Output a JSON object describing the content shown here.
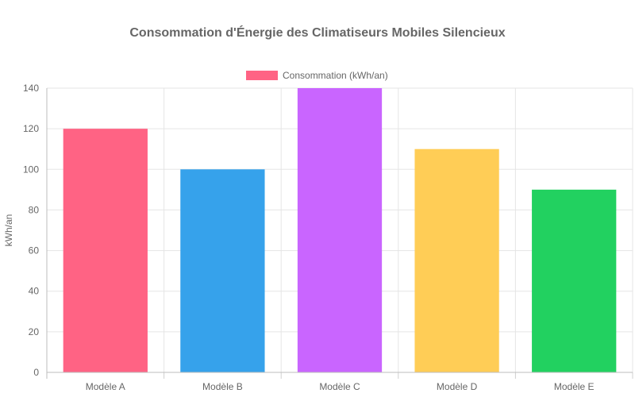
{
  "chart_data": {
    "type": "bar",
    "title": "Consommation d'Énergie des Climatiseurs Mobiles Silencieux",
    "xlabel": "",
    "ylabel": "kWh/an",
    "ylim": [
      0,
      140
    ],
    "yticks": [
      "0",
      "20",
      "40",
      "60",
      "80",
      "100",
      "120",
      "140"
    ],
    "grid": true,
    "legend_position": "top",
    "categories": [
      "Modèle A",
      "Modèle B",
      "Modèle C",
      "Modèle D",
      "Modèle E"
    ],
    "series": [
      {
        "name": "Consommation (kWh/an)",
        "values": [
          120,
          100,
          140,
          110,
          90
        ],
        "colors": [
          "#ff6384",
          "#36a2eb",
          "#c965ff",
          "#ffcd56",
          "#22d160"
        ]
      }
    ]
  }
}
